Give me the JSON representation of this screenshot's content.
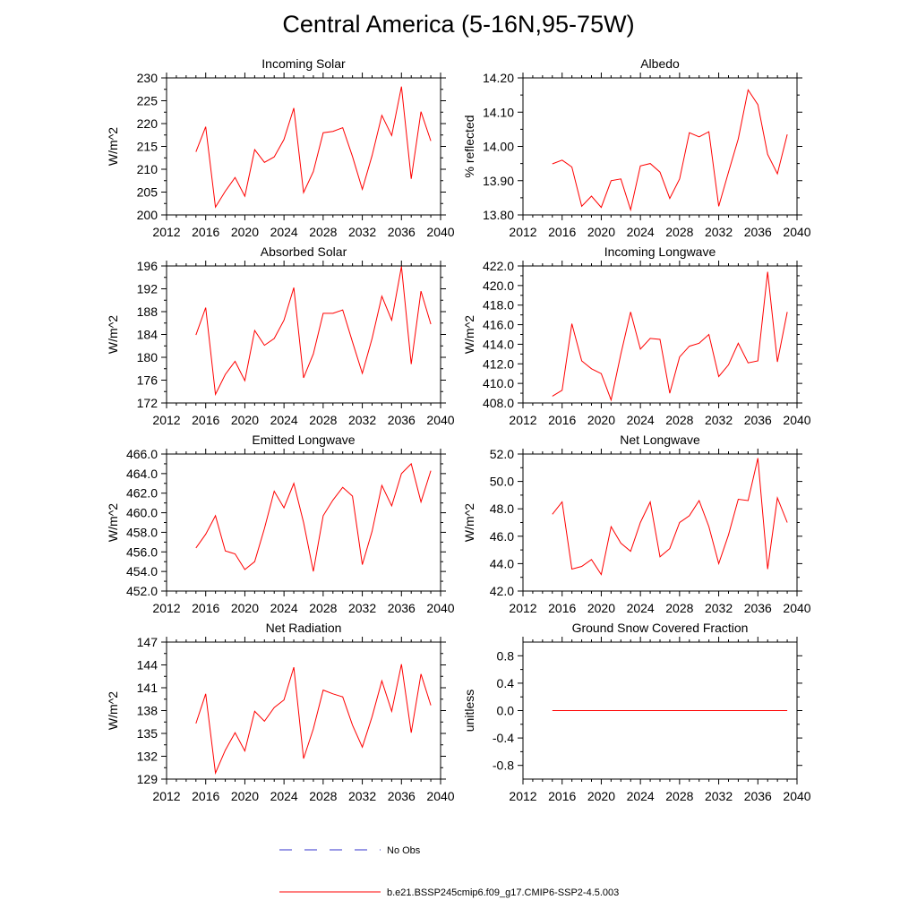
{
  "title": "Central America (5-16N,95-75W)",
  "colors": {
    "model": "#ff0000",
    "obs": "#3333cc",
    "axis": "#000000"
  },
  "chart_data": [
    {
      "type": "line",
      "title": "Incoming Solar",
      "ylabel": "W/m^2",
      "xlim": [
        2012,
        2040
      ],
      "xticks": [
        "2012",
        "2016",
        "2020",
        "2024",
        "2028",
        "2032",
        "2036",
        "2040"
      ],
      "ylim": [
        200,
        230
      ],
      "yticks": [
        "200",
        "205",
        "210",
        "215",
        "220",
        "225",
        "230"
      ],
      "ytick_values": [
        200,
        205,
        210,
        215,
        220,
        225,
        230
      ],
      "x": [
        2015,
        2016,
        2017,
        2018,
        2019,
        2020,
        2021,
        2022,
        2023,
        2024,
        2025,
        2026,
        2027,
        2028,
        2029,
        2030,
        2031,
        2032,
        2033,
        2034,
        2035,
        2036,
        2037,
        2038,
        2039
      ],
      "series": [
        {
          "name": "b.e21.BSSP245cmip6.f09_g17.CMIP6-SSP2-4.5.003",
          "values": [
            213.8,
            219.3,
            201.7,
            205.2,
            208.2,
            204.1,
            214.3,
            211.5,
            212.7,
            216.5,
            223.4,
            204.9,
            209.5,
            218.0,
            218.3,
            219.1,
            212.8,
            205.6,
            213.0,
            221.8,
            217.4,
            228.1,
            207.9,
            222.6,
            216.2
          ]
        }
      ]
    },
    {
      "type": "line",
      "title": "Albedo",
      "ylabel": "% reflected",
      "xlim": [
        2012,
        2040
      ],
      "xticks": [
        "2012",
        "2016",
        "2020",
        "2024",
        "2028",
        "2032",
        "2036",
        "2040"
      ],
      "ylim": [
        13.8,
        14.2
      ],
      "yticks": [
        "13.80",
        "13.90",
        "14.00",
        "14.10",
        "14.20"
      ],
      "ytick_values": [
        13.8,
        13.9,
        14.0,
        14.1,
        14.2
      ],
      "x": [
        2015,
        2016,
        2017,
        2018,
        2019,
        2020,
        2021,
        2022,
        2023,
        2024,
        2025,
        2026,
        2027,
        2028,
        2029,
        2030,
        2031,
        2032,
        2033,
        2034,
        2035,
        2036,
        2037,
        2038,
        2039
      ],
      "series": [
        {
          "name": "b.e21.BSSP245cmip6.f09_g17.CMIP6-SSP2-4.5.003",
          "values": [
            13.949,
            13.96,
            13.94,
            13.825,
            13.855,
            13.822,
            13.9,
            13.905,
            13.815,
            13.943,
            13.95,
            13.925,
            13.848,
            13.905,
            14.04,
            14.028,
            14.043,
            13.825,
            13.925,
            14.022,
            14.165,
            14.122,
            13.977,
            13.92,
            14.035
          ]
        }
      ]
    },
    {
      "type": "line",
      "title": "Absorbed Solar",
      "ylabel": "W/m^2",
      "xlim": [
        2012,
        2040
      ],
      "xticks": [
        "2012",
        "2016",
        "2020",
        "2024",
        "2028",
        "2032",
        "2036",
        "2040"
      ],
      "ylim": [
        172,
        196
      ],
      "yticks": [
        "172",
        "176",
        "180",
        "184",
        "188",
        "192",
        "196"
      ],
      "ytick_values": [
        172,
        176,
        180,
        184,
        188,
        192,
        196
      ],
      "x": [
        2015,
        2016,
        2017,
        2018,
        2019,
        2020,
        2021,
        2022,
        2023,
        2024,
        2025,
        2026,
        2027,
        2028,
        2029,
        2030,
        2031,
        2032,
        2033,
        2034,
        2035,
        2036,
        2037,
        2038,
        2039
      ],
      "series": [
        {
          "name": "b.e21.BSSP245cmip6.f09_g17.CMIP6-SSP2-4.5.003",
          "values": [
            183.9,
            188.7,
            173.5,
            177.0,
            179.3,
            175.9,
            184.7,
            182.1,
            183.3,
            186.5,
            192.2,
            176.4,
            180.6,
            187.7,
            187.7,
            188.3,
            182.7,
            177.2,
            183.3,
            190.7,
            186.5,
            195.9,
            178.8,
            191.6,
            185.8
          ]
        }
      ]
    },
    {
      "type": "line",
      "title": "Incoming Longwave",
      "ylabel": "W/m^2",
      "xlim": [
        2012,
        2040
      ],
      "xticks": [
        "2012",
        "2016",
        "2020",
        "2024",
        "2028",
        "2032",
        "2036",
        "2040"
      ],
      "ylim": [
        408.0,
        422.0
      ],
      "yticks": [
        "408.0",
        "410.0",
        "412.0",
        "414.0",
        "416.0",
        "418.0",
        "420.0",
        "422.0"
      ],
      "ytick_values": [
        408,
        410,
        412,
        414,
        416,
        418,
        420,
        422
      ],
      "x": [
        2015,
        2016,
        2017,
        2018,
        2019,
        2020,
        2021,
        2022,
        2023,
        2024,
        2025,
        2026,
        2027,
        2028,
        2029,
        2030,
        2031,
        2032,
        2033,
        2034,
        2035,
        2036,
        2037,
        2038,
        2039
      ],
      "series": [
        {
          "name": "b.e21.BSSP245cmip6.f09_g17.CMIP6-SSP2-4.5.003",
          "values": [
            408.7,
            409.3,
            416.1,
            412.3,
            411.5,
            411.0,
            408.3,
            413.0,
            417.3,
            413.5,
            414.6,
            414.5,
            409.0,
            412.7,
            413.8,
            414.1,
            415.0,
            410.7,
            411.9,
            414.1,
            412.1,
            412.3,
            421.4,
            412.2,
            417.3
          ]
        }
      ]
    },
    {
      "type": "line",
      "title": "Emitted Longwave",
      "ylabel": "W/m^2",
      "xlim": [
        2012,
        2040
      ],
      "xticks": [
        "2012",
        "2016",
        "2020",
        "2024",
        "2028",
        "2032",
        "2036",
        "2040"
      ],
      "ylim": [
        452.0,
        466.0
      ],
      "yticks": [
        "452.0",
        "454.0",
        "456.0",
        "458.0",
        "460.0",
        "462.0",
        "464.0",
        "466.0"
      ],
      "ytick_values": [
        452,
        454,
        456,
        458,
        460,
        462,
        464,
        466
      ],
      "x": [
        2015,
        2016,
        2017,
        2018,
        2019,
        2020,
        2021,
        2022,
        2023,
        2024,
        2025,
        2026,
        2027,
        2028,
        2029,
        2030,
        2031,
        2032,
        2033,
        2034,
        2035,
        2036,
        2037,
        2038,
        2039
      ],
      "series": [
        {
          "name": "b.e21.BSSP245cmip6.f09_g17.CMIP6-SSP2-4.5.003",
          "values": [
            456.4,
            457.8,
            459.7,
            456.1,
            455.8,
            454.2,
            455.0,
            458.4,
            462.2,
            460.5,
            463.0,
            459.0,
            454.0,
            459.7,
            461.3,
            462.6,
            461.7,
            454.7,
            458.1,
            462.8,
            460.7,
            464.0,
            465.0,
            461.1,
            464.3
          ]
        }
      ]
    },
    {
      "type": "line",
      "title": "Net Longwave",
      "ylabel": "W/m^2",
      "xlim": [
        2012,
        2040
      ],
      "xticks": [
        "2012",
        "2016",
        "2020",
        "2024",
        "2028",
        "2032",
        "2036",
        "2040"
      ],
      "ylim": [
        42.0,
        52.0
      ],
      "yticks": [
        "42.0",
        "44.0",
        "46.0",
        "48.0",
        "50.0",
        "52.0"
      ],
      "ytick_values": [
        42,
        44,
        46,
        48,
        50,
        52
      ],
      "x": [
        2015,
        2016,
        2017,
        2018,
        2019,
        2020,
        2021,
        2022,
        2023,
        2024,
        2025,
        2026,
        2027,
        2028,
        2029,
        2030,
        2031,
        2032,
        2033,
        2034,
        2035,
        2036,
        2037,
        2038,
        2039
      ],
      "series": [
        {
          "name": "b.e21.BSSP245cmip6.f09_g17.CMIP6-SSP2-4.5.003",
          "values": [
            47.6,
            48.5,
            43.6,
            43.8,
            44.3,
            43.2,
            46.7,
            45.5,
            44.9,
            47.0,
            48.5,
            44.5,
            45.1,
            47.0,
            47.5,
            48.6,
            46.7,
            44.0,
            46.1,
            48.7,
            48.6,
            51.7,
            43.6,
            48.8,
            47.0
          ]
        }
      ]
    },
    {
      "type": "line",
      "title": "Net Radiation",
      "ylabel": "W/m^2",
      "xlim": [
        2012,
        2040
      ],
      "xticks": [
        "2012",
        "2016",
        "2020",
        "2024",
        "2028",
        "2032",
        "2036",
        "2040"
      ],
      "ylim": [
        129,
        147
      ],
      "yticks": [
        "129",
        "132",
        "135",
        "138",
        "141",
        "144",
        "147"
      ],
      "ytick_values": [
        129,
        132,
        135,
        138,
        141,
        144,
        147
      ],
      "x": [
        2015,
        2016,
        2017,
        2018,
        2019,
        2020,
        2021,
        2022,
        2023,
        2024,
        2025,
        2026,
        2027,
        2028,
        2029,
        2030,
        2031,
        2032,
        2033,
        2034,
        2035,
        2036,
        2037,
        2038,
        2039
      ],
      "series": [
        {
          "name": "b.e21.BSSP245cmip6.f09_g17.CMIP6-SSP2-4.5.003",
          "values": [
            136.3,
            140.2,
            129.8,
            132.8,
            135.1,
            132.7,
            137.9,
            136.6,
            138.4,
            139.4,
            143.7,
            131.7,
            135.6,
            140.7,
            140.2,
            139.8,
            136.1,
            133.2,
            137.2,
            141.9,
            137.9,
            144.1,
            135.1,
            142.8,
            138.7
          ]
        }
      ]
    },
    {
      "type": "line",
      "title": "Ground Snow Covered Fraction",
      "ylabel": "unitless",
      "xlim": [
        2012,
        2040
      ],
      "xticks": [
        "2012",
        "2016",
        "2020",
        "2024",
        "2028",
        "2032",
        "2036",
        "2040"
      ],
      "ylim": [
        -1.0,
        1.0
      ],
      "yticks": [
        "-0.8",
        "-0.4",
        "0.0",
        "0.4",
        "0.8"
      ],
      "ytick_values": [
        -0.8,
        -0.4,
        0.0,
        0.4,
        0.8
      ],
      "x": [
        2015,
        2016,
        2017,
        2018,
        2019,
        2020,
        2021,
        2022,
        2023,
        2024,
        2025,
        2026,
        2027,
        2028,
        2029,
        2030,
        2031,
        2032,
        2033,
        2034,
        2035,
        2036,
        2037,
        2038,
        2039
      ],
      "series": [
        {
          "name": "b.e21.BSSP245cmip6.f09_g17.CMIP6-SSP2-4.5.003",
          "values": [
            0,
            0,
            0,
            0,
            0,
            0,
            0,
            0,
            0,
            0,
            0,
            0,
            0,
            0,
            0,
            0,
            0,
            0,
            0,
            0,
            0,
            0,
            0,
            0,
            0
          ]
        }
      ]
    }
  ],
  "legend": {
    "items": [
      {
        "label": "No Obs",
        "style": "dashed",
        "color": "#3333cc"
      },
      {
        "label": "b.e21.BSSP245cmip6.f09_g17.CMIP6-SSP2-4.5.003",
        "style": "solid",
        "color": "#ff0000"
      }
    ]
  }
}
